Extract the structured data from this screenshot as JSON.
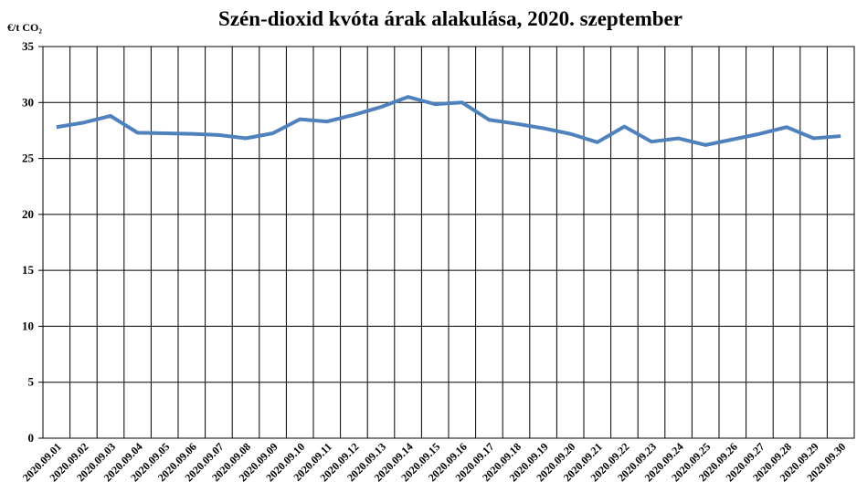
{
  "chart_data": {
    "type": "line",
    "title": "Szén-dioxid kvóta árak alakulása, 2020. szeptember",
    "ylabel": "€/t CO₂",
    "categories": [
      "2020.09.01",
      "2020.09.02",
      "2020.09.03",
      "2020.09.04",
      "2020.09.05",
      "2020.09.06",
      "2020.09.07",
      "2020.09.08",
      "2020.09.09",
      "2020.09.10",
      "2020.09.11",
      "2020.09.12",
      "2020.09.13",
      "2020.09.14",
      "2020.09.15",
      "2020.09.16",
      "2020.09.17",
      "2020.09.18",
      "2020.09.19",
      "2020.09.20",
      "2020.09.21",
      "2020.09.22",
      "2020.09.23",
      "2020.09.24",
      "2020.09.25",
      "2020.09.26",
      "2020.09.27",
      "2020.09.28",
      "2020.09.29",
      "2020.09.30"
    ],
    "series": [
      {
        "color": "#4f81bd",
        "values": [
          27.8,
          28.2,
          28.8,
          27.3,
          27.25,
          27.2,
          27.1,
          26.8,
          27.25,
          28.5,
          28.3,
          28.9,
          29.6,
          30.5,
          29.85,
          30.0,
          28.45,
          28.1,
          27.7,
          27.2,
          26.45,
          27.85,
          26.5,
          26.8,
          26.2,
          26.7,
          27.2,
          27.8,
          26.8,
          27.0
        ]
      }
    ],
    "ylim": [
      0,
      35
    ],
    "yticks": [
      0,
      5,
      10,
      15,
      20,
      25,
      30,
      35
    ],
    "grid": true
  }
}
